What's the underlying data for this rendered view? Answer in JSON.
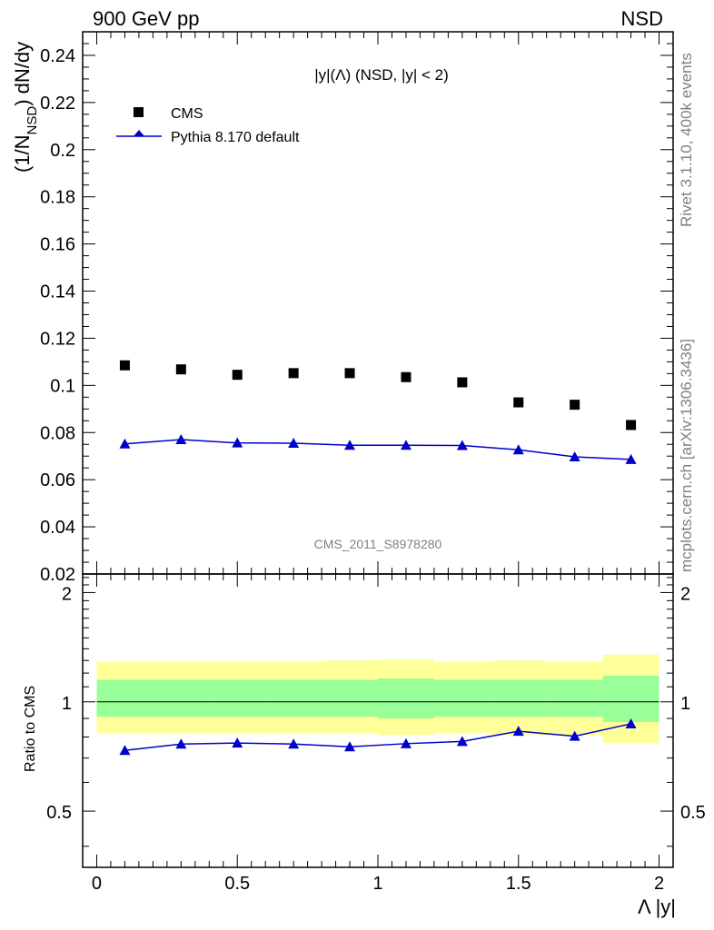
{
  "header": {
    "left": "900 GeV pp",
    "right": "NSD"
  },
  "side": {
    "rivet": "Rivet 3.1.10,  400k events",
    "mcplots": "mcplots.cern.ch [arXiv:1306.3436]"
  },
  "colors": {
    "data": "#000000",
    "mc": "#0000cc",
    "band_inner": "#99ff99",
    "band_outer": "#ffff99"
  },
  "chart_data": [
    {
      "type": "scatter",
      "title": "|y|(Λ) (NSD, |y| < 2)",
      "analysis_id": "CMS_2011_S8978280",
      "ylabel_main": "(1/N",
      "ylabel_sub": "NSD",
      "ylabel_tail": ") dN/dy",
      "xlabel": "Λ |y|",
      "xlim": [
        -0.05,
        2.05
      ],
      "ylim": [
        0.02,
        0.25
      ],
      "yticks": [
        0.02,
        0.04,
        0.06,
        0.08,
        0.1,
        0.12,
        0.14,
        0.16,
        0.18,
        0.2,
        0.22,
        0.24
      ],
      "ytick_labels": [
        "0.02",
        "0.04",
        "0.06",
        "0.08",
        "0.1",
        "0.12",
        "0.14",
        "0.16",
        "0.18",
        "0.2",
        "0.22",
        "0.24"
      ],
      "x": [
        0.1,
        0.3,
        0.5,
        0.7,
        0.9,
        1.1,
        1.3,
        1.5,
        1.7,
        1.9
      ],
      "series": [
        {
          "name": "CMS",
          "marker": "square",
          "values": [
            0.1085,
            0.1068,
            0.1045,
            0.1052,
            0.1052,
            0.1035,
            0.1013,
            0.0928,
            0.0918,
            0.0832
          ]
        },
        {
          "name": "Pythia 8.170 default",
          "marker": "triangle",
          "values": [
            0.0752,
            0.077,
            0.0756,
            0.0755,
            0.0746,
            0.0746,
            0.0745,
            0.0727,
            0.0697,
            0.0686
          ]
        }
      ]
    },
    {
      "type": "line",
      "ylabel": "Ratio to CMS",
      "xlabel": "Λ |y|",
      "xlim": [
        -0.05,
        2.05
      ],
      "ylim": [
        0.35,
        2.25
      ],
      "yticks": [
        0.5,
        1,
        2
      ],
      "ytick_labels": [
        "0.5",
        "1",
        "2"
      ],
      "xticks": [
        0,
        0.5,
        1,
        1.5,
        2
      ],
      "xtick_labels": [
        "0",
        "0.5",
        "1",
        "1.5",
        "2"
      ],
      "bin_edges": [
        0,
        0.2,
        0.4,
        0.6,
        0.8,
        1.0,
        1.2,
        1.4,
        1.6,
        1.8,
        2.0
      ],
      "band_inner": [
        [
          0.91,
          1.15
        ],
        [
          0.91,
          1.15
        ],
        [
          0.91,
          1.15
        ],
        [
          0.91,
          1.15
        ],
        [
          0.91,
          1.15
        ],
        [
          0.9,
          1.16
        ],
        [
          0.91,
          1.15
        ],
        [
          0.91,
          1.15
        ],
        [
          0.91,
          1.15
        ],
        [
          0.88,
          1.18
        ]
      ],
      "band_outer": [
        [
          0.82,
          1.29
        ],
        [
          0.82,
          1.29
        ],
        [
          0.82,
          1.29
        ],
        [
          0.82,
          1.29
        ],
        [
          0.82,
          1.3
        ],
        [
          0.81,
          1.31
        ],
        [
          0.82,
          1.29
        ],
        [
          0.81,
          1.3
        ],
        [
          0.81,
          1.29
        ],
        [
          0.77,
          1.35
        ]
      ],
      "reference": 1,
      "x": [
        0.1,
        0.3,
        0.5,
        0.7,
        0.9,
        1.1,
        1.3,
        1.5,
        1.7,
        1.9
      ],
      "series": [
        {
          "name": "Pythia 8.170 default",
          "values": [
            0.735,
            0.765,
            0.77,
            0.765,
            0.752,
            0.767,
            0.778,
            0.83,
            0.804,
            0.87
          ]
        }
      ]
    }
  ]
}
